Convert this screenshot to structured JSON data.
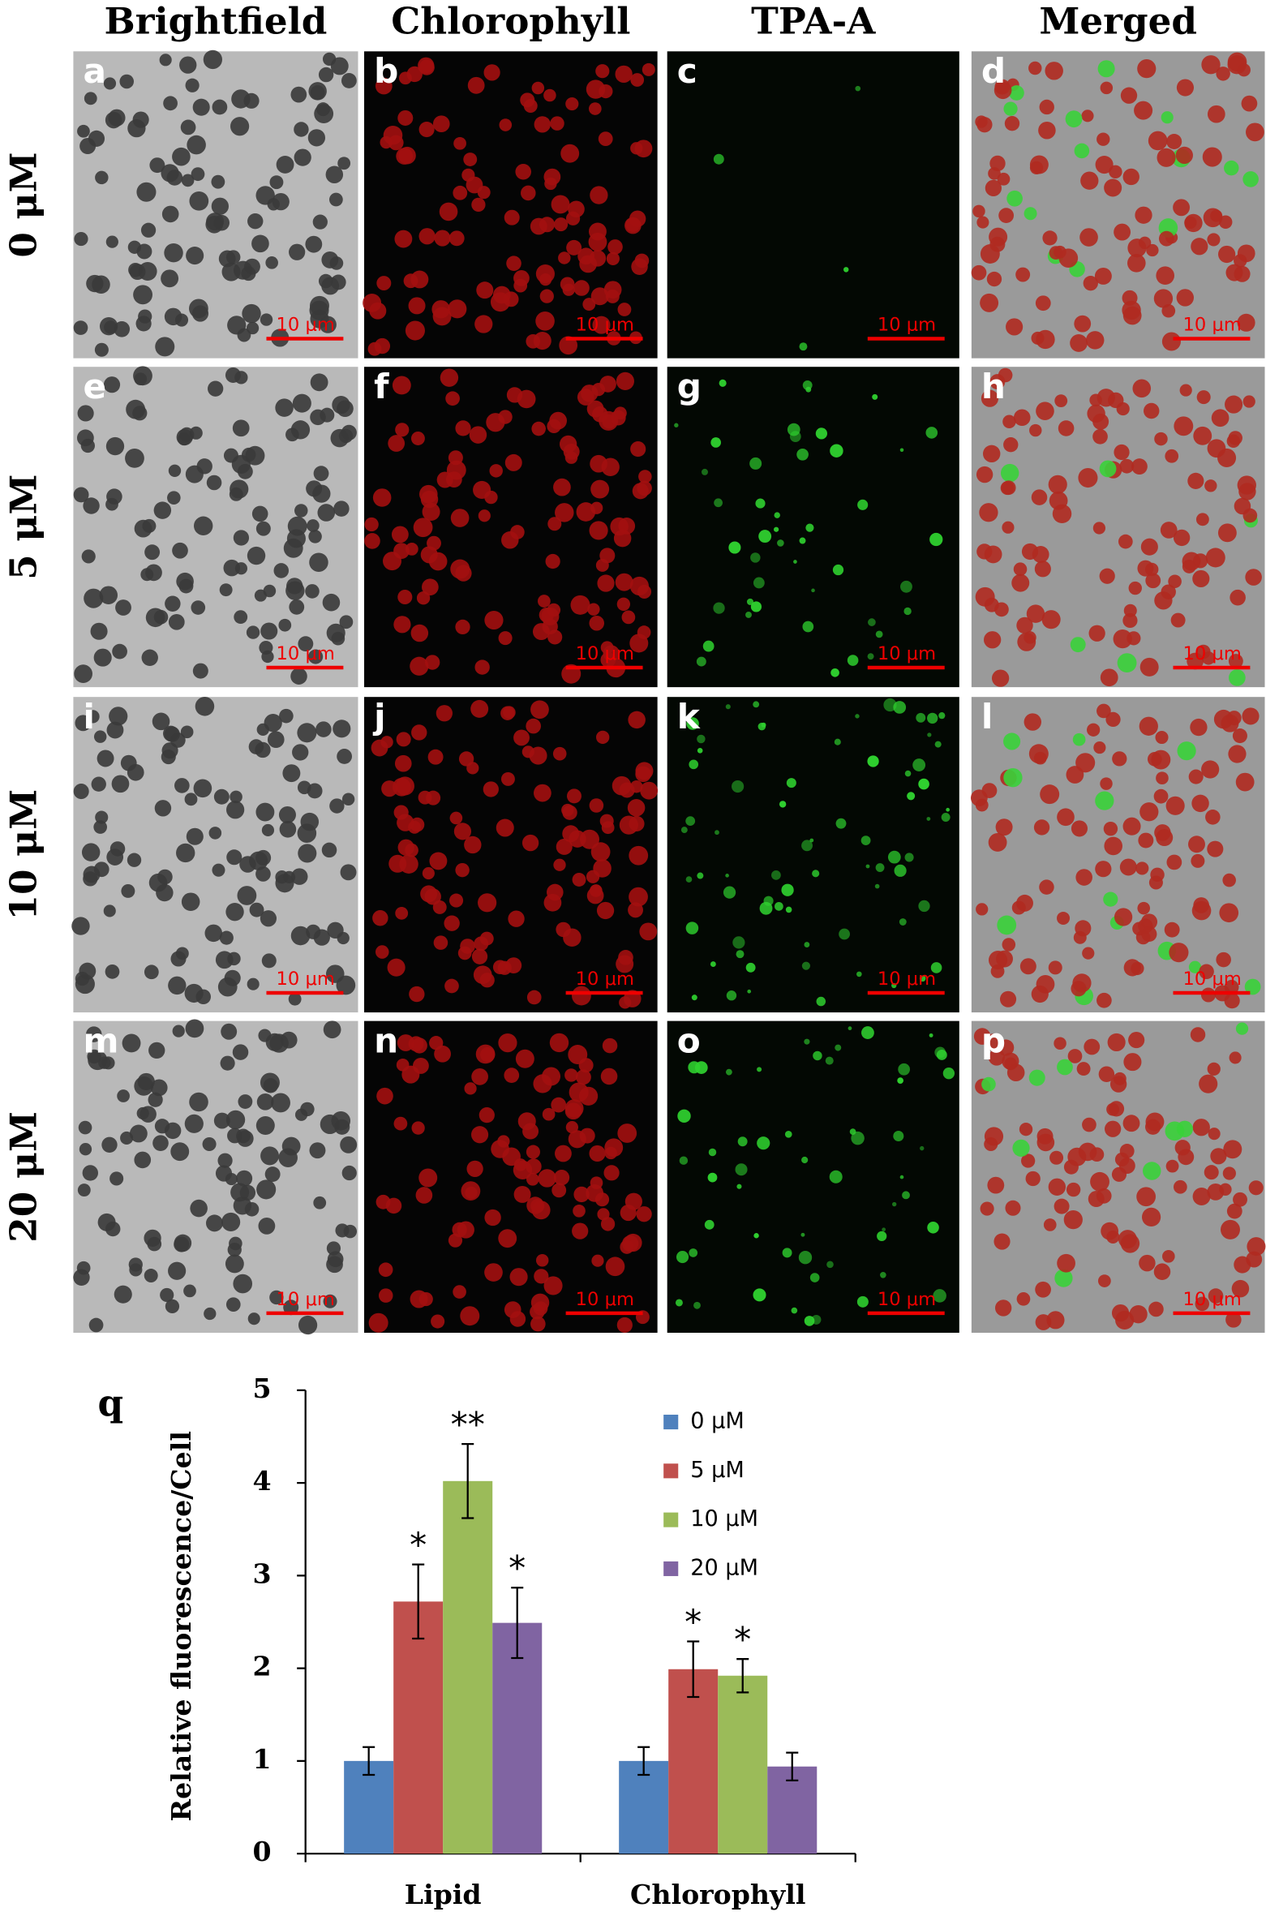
{
  "figure": {
    "column_headers": [
      "Brightfield",
      "Chlorophyll",
      "TPA-A",
      "Merged"
    ],
    "row_labels": [
      "0 μM",
      "5 μM",
      "10 μM",
      "20 μM"
    ],
    "panels": [
      [
        {
          "letter": "a",
          "scale_bar": "10 μm"
        },
        {
          "letter": "b",
          "scale_bar": "10 μm"
        },
        {
          "letter": "c",
          "scale_bar": "10 μm"
        },
        {
          "letter": "d",
          "scale_bar": "10 μm"
        }
      ],
      [
        {
          "letter": "e",
          "scale_bar": "10 μm"
        },
        {
          "letter": "f",
          "scale_bar": "10 μm"
        },
        {
          "letter": "g",
          "scale_bar": "10 μm"
        },
        {
          "letter": "h",
          "scale_bar": "10 μm"
        }
      ],
      [
        {
          "letter": "i",
          "scale_bar": "10 μm"
        },
        {
          "letter": "j",
          "scale_bar": "10 μm"
        },
        {
          "letter": "k",
          "scale_bar": "10 μm"
        },
        {
          "letter": "l",
          "scale_bar": "10 μm"
        }
      ],
      [
        {
          "letter": "m",
          "scale_bar": "10 μm"
        },
        {
          "letter": "n",
          "scale_bar": "10 μm"
        },
        {
          "letter": "o",
          "scale_bar": "10 μm"
        },
        {
          "letter": "p",
          "scale_bar": "10 μm"
        }
      ]
    ]
  },
  "chart_data": {
    "type": "bar",
    "panel_label": "q",
    "ylabel": "Relative fluorescence/Cell",
    "categories": [
      "Lipid",
      "Chlorophyll"
    ],
    "series": [
      {
        "name": "0 μM",
        "color": "#4f81bd",
        "values": [
          1,
          1
        ],
        "errors": [
          0.15,
          0.15
        ],
        "labels": [
          null,
          null
        ]
      },
      {
        "name": "5 μM",
        "color": "#c0504d",
        "values": [
          2.72,
          1.99
        ],
        "errors": [
          0.4,
          0.3
        ],
        "labels": [
          "*",
          "*"
        ]
      },
      {
        "name": "10 μM",
        "color": "#9bbb59",
        "values": [
          4.02,
          1.92
        ],
        "errors": [
          0.4,
          0.18
        ],
        "labels": [
          "**",
          "*"
        ]
      },
      {
        "name": "20 μM",
        "color": "#8064a2",
        "values": [
          2.49,
          0.94
        ],
        "errors": [
          0.38,
          0.15
        ],
        "labels": [
          "*",
          null
        ]
      }
    ],
    "ylim": [
      0,
      5
    ],
    "yticks": [
      0,
      1,
      2,
      3,
      4,
      5
    ],
    "legend": "upper right"
  }
}
